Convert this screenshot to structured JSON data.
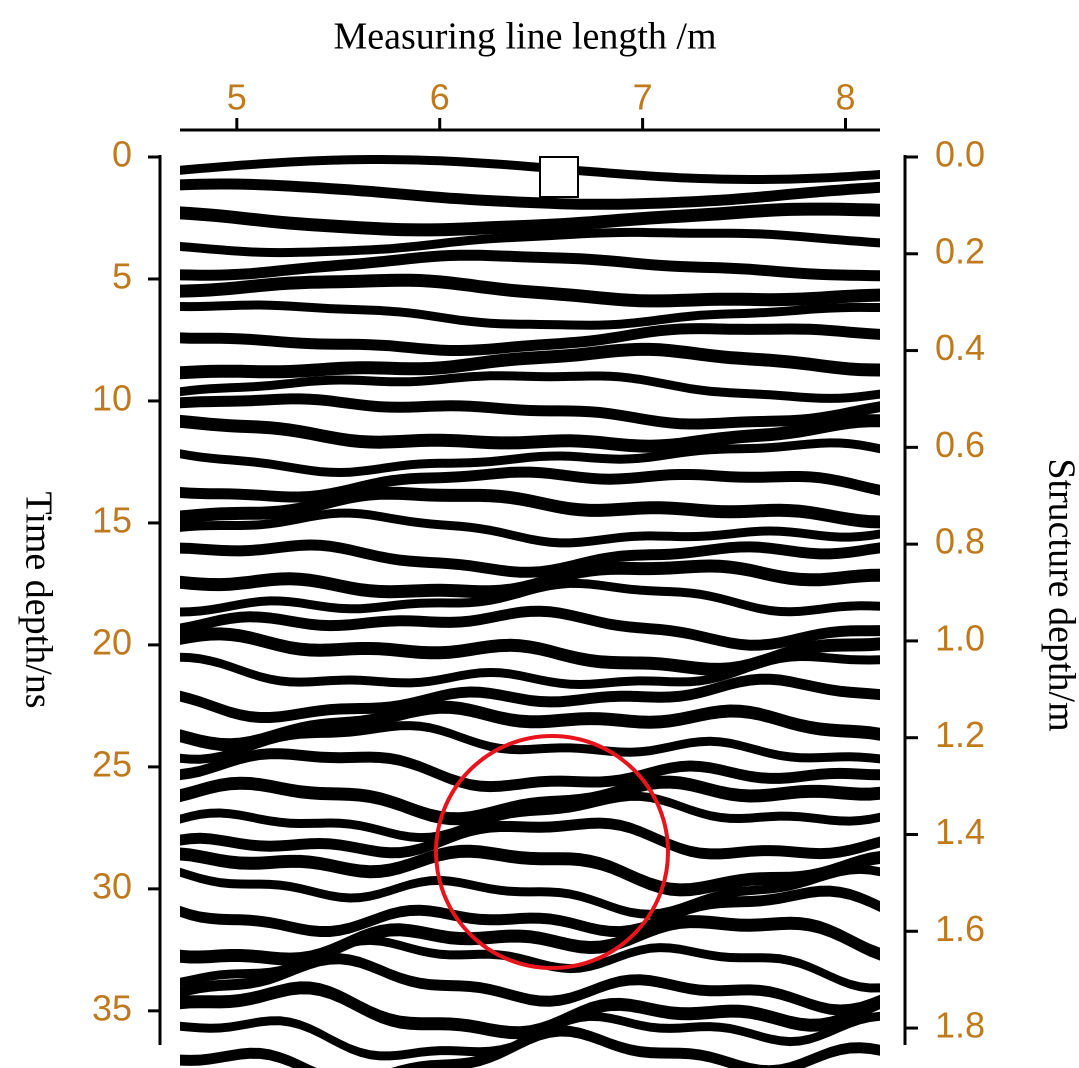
{
  "chart_data": {
    "type": "radargram",
    "xlabel": "Measuring line length /m",
    "ylabel": "Time depth/ns",
    "y2label": "Structure depth/m",
    "xlim": [
      4.72,
      8.17
    ],
    "xticks": [
      5,
      6,
      7,
      8
    ],
    "ylim": [
      0,
      36.4
    ],
    "yticks": [
      0,
      5,
      10,
      15,
      20,
      25,
      30,
      35
    ],
    "y2lim": [
      0,
      1.835
    ],
    "y2ticks": [
      {
        "value": 0,
        "label": "0.0"
      },
      0.2,
      0.4,
      0.6,
      0.8,
      {
        "value": 1,
        "label": "1.0"
      },
      1.2,
      1.4,
      1.6,
      1.8
    ]
  }
}
